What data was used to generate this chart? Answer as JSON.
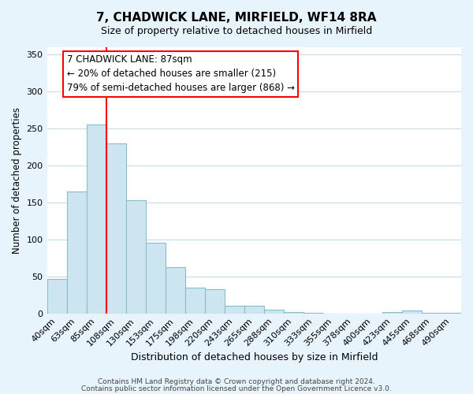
{
  "title": "7, CHADWICK LANE, MIRFIELD, WF14 8RA",
  "subtitle": "Size of property relative to detached houses in Mirfield",
  "xlabel": "Distribution of detached houses by size in Mirfield",
  "ylabel": "Number of detached properties",
  "bar_labels": [
    "40sqm",
    "63sqm",
    "85sqm",
    "108sqm",
    "130sqm",
    "153sqm",
    "175sqm",
    "198sqm",
    "220sqm",
    "243sqm",
    "265sqm",
    "288sqm",
    "310sqm",
    "333sqm",
    "355sqm",
    "378sqm",
    "400sqm",
    "423sqm",
    "445sqm",
    "468sqm",
    "490sqm"
  ],
  "bar_values": [
    46,
    165,
    255,
    230,
    153,
    96,
    62,
    35,
    33,
    10,
    10,
    5,
    2,
    1,
    0,
    0,
    0,
    2,
    4,
    1,
    1
  ],
  "bar_color": "#cce5f0",
  "bar_edge_color": "#8bbccc",
  "vline_x": 2.5,
  "vline_color": "red",
  "ylim": [
    0,
    360
  ],
  "yticks": [
    0,
    50,
    100,
    150,
    200,
    250,
    300,
    350
  ],
  "annotation_text": "7 CHADWICK LANE: 87sqm\n← 20% of detached houses are smaller (215)\n79% of semi-detached houses are larger (868) →",
  "annotation_box_color": "white",
  "annotation_box_edge": "red",
  "footer1": "Contains HM Land Registry data © Crown copyright and database right 2024.",
  "footer2": "Contains public sector information licensed under the Open Government Licence v3.0.",
  "bg_color": "#e8f4fb",
  "plot_bg_color": "#ffffff",
  "grid_color": "#c8dce8",
  "title_fontsize": 11,
  "subtitle_fontsize": 9
}
